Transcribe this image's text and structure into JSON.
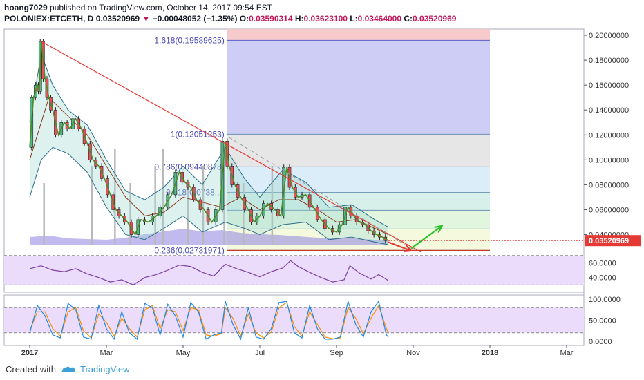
{
  "header": {
    "author": "hoang7029",
    "published_text": "published on TradingView.com, October 14, 2017 09:54 EST",
    "symbol": "POLONIEX:ETCETH, D",
    "last": "0.03520969",
    "change_arrow": "▼",
    "change": "−0.00048052 (−1.35%)",
    "o_label": "O:",
    "o_value": "0.03590314",
    "h_label": "H:",
    "h_value": "0.03623100",
    "l_label": "L:",
    "l_value": "0.03464000",
    "c_label": "C:",
    "c_value": "0.03520969"
  },
  "footer": {
    "created_with": "Created with",
    "brand": "TradingView"
  },
  "colors": {
    "price": "#1a1a1a",
    "up_candle": "#53b987",
    "down_candle": "#eb4d5c",
    "bollinger": "#2a6c8a",
    "ma_green": "#4c8c28",
    "ma_brown": "#8b3a1c",
    "trendline": "#e53935",
    "arrow_green": "#26c226",
    "arrow_red": "#e53935",
    "rsi": "#7b3f9e",
    "stoch_k": "#1e88e5",
    "stoch_d": "#fb8c00",
    "price_label_bg": "#e53935"
  },
  "chart_data": {
    "type": "candlestick",
    "price_axis": {
      "ticks": [
        "0.20000000",
        "0.18000000",
        "0.16000000",
        "0.14000000",
        "0.12000000",
        "0.10000000",
        "0.08000000",
        "0.06000000",
        "0.04000000"
      ],
      "tick_values": [
        0.2,
        0.18,
        0.16,
        0.14,
        0.12,
        0.1,
        0.08,
        0.06,
        0.04
      ],
      "last_price_label": "0.03520969",
      "last_price": 0.0352,
      "ylim": [
        0.022,
        0.205
      ]
    },
    "time_axis": {
      "labels": [
        "2017",
        "Mar",
        "May",
        "Jul",
        "Sep",
        "Nov",
        "2018",
        "Mar"
      ],
      "label_months": [
        0,
        2,
        4,
        6,
        8,
        10,
        12,
        14
      ]
    },
    "price_series": [
      [
        0.0,
        0.11
      ],
      [
        0.1,
        0.15
      ],
      [
        0.2,
        0.16
      ],
      [
        0.25,
        0.155
      ],
      [
        0.3,
        0.195
      ],
      [
        0.4,
        0.165
      ],
      [
        0.5,
        0.15
      ],
      [
        0.6,
        0.14
      ],
      [
        0.75,
        0.12
      ],
      [
        0.9,
        0.13
      ],
      [
        1.05,
        0.125
      ],
      [
        1.2,
        0.133
      ],
      [
        1.35,
        0.125
      ],
      [
        1.5,
        0.113
      ],
      [
        1.65,
        0.1
      ],
      [
        1.8,
        0.095
      ],
      [
        1.95,
        0.085
      ],
      [
        2.1,
        0.072
      ],
      [
        2.25,
        0.06
      ],
      [
        2.4,
        0.055
      ],
      [
        2.55,
        0.05
      ],
      [
        2.75,
        0.04
      ],
      [
        2.9,
        0.052
      ],
      [
        3.1,
        0.05
      ],
      [
        3.3,
        0.055
      ],
      [
        3.5,
        0.062
      ],
      [
        3.7,
        0.072
      ],
      [
        3.9,
        0.09
      ],
      [
        4.05,
        0.082
      ],
      [
        4.2,
        0.078
      ],
      [
        4.35,
        0.068
      ],
      [
        4.55,
        0.06
      ],
      [
        4.75,
        0.05
      ],
      [
        4.95,
        0.06
      ],
      [
        5.1,
        0.115
      ],
      [
        5.2,
        0.095
      ],
      [
        5.35,
        0.08
      ],
      [
        5.5,
        0.07
      ],
      [
        5.7,
        0.06
      ],
      [
        5.85,
        0.05
      ],
      [
        6.0,
        0.055
      ],
      [
        6.2,
        0.065
      ],
      [
        6.4,
        0.06
      ],
      [
        6.55,
        0.055
      ],
      [
        6.7,
        0.094
      ],
      [
        6.85,
        0.078
      ],
      [
        7.0,
        0.07
      ],
      [
        7.2,
        0.072
      ],
      [
        7.4,
        0.062
      ],
      [
        7.6,
        0.052
      ],
      [
        7.8,
        0.045
      ],
      [
        8.0,
        0.042
      ],
      [
        8.15,
        0.048
      ],
      [
        8.3,
        0.062
      ],
      [
        8.45,
        0.055
      ],
      [
        8.6,
        0.05
      ],
      [
        8.75,
        0.048
      ],
      [
        8.9,
        0.043
      ],
      [
        9.05,
        0.04
      ],
      [
        9.2,
        0.038
      ],
      [
        9.35,
        0.0352
      ]
    ],
    "bollinger_upper": [
      [
        0.0,
        0.13
      ],
      [
        0.3,
        0.185
      ],
      [
        0.6,
        0.16
      ],
      [
        1.0,
        0.14
      ],
      [
        1.5,
        0.128
      ],
      [
        2.0,
        0.1
      ],
      [
        2.5,
        0.075
      ],
      [
        3.0,
        0.068
      ],
      [
        3.5,
        0.078
      ],
      [
        4.0,
        0.095
      ],
      [
        4.5,
        0.08
      ],
      [
        5.1,
        0.11
      ],
      [
        5.6,
        0.085
      ],
      [
        6.0,
        0.07
      ],
      [
        6.6,
        0.092
      ],
      [
        7.2,
        0.082
      ],
      [
        7.8,
        0.062
      ],
      [
        8.4,
        0.064
      ],
      [
        9.0,
        0.052
      ],
      [
        9.35,
        0.046
      ]
    ],
    "bollinger_lower": [
      [
        0.0,
        0.07
      ],
      [
        0.3,
        0.1
      ],
      [
        0.6,
        0.11
      ],
      [
        1.0,
        0.105
      ],
      [
        1.5,
        0.09
      ],
      [
        2.0,
        0.062
      ],
      [
        2.5,
        0.04
      ],
      [
        3.0,
        0.036
      ],
      [
        3.5,
        0.045
      ],
      [
        4.0,
        0.055
      ],
      [
        4.5,
        0.042
      ],
      [
        5.1,
        0.05
      ],
      [
        5.6,
        0.045
      ],
      [
        6.0,
        0.04
      ],
      [
        6.6,
        0.048
      ],
      [
        7.2,
        0.05
      ],
      [
        7.8,
        0.036
      ],
      [
        8.4,
        0.038
      ],
      [
        9.0,
        0.034
      ],
      [
        9.35,
        0.032
      ]
    ],
    "ma_slow": [
      [
        0.0,
        0.1
      ],
      [
        0.5,
        0.15
      ],
      [
        1.0,
        0.135
      ],
      [
        1.5,
        0.12
      ],
      [
        2.0,
        0.095
      ],
      [
        2.5,
        0.07
      ],
      [
        3.0,
        0.055
      ],
      [
        3.5,
        0.058
      ],
      [
        4.0,
        0.07
      ],
      [
        4.5,
        0.066
      ],
      [
        5.0,
        0.062
      ],
      [
        5.5,
        0.07
      ],
      [
        6.0,
        0.06
      ],
      [
        6.5,
        0.068
      ],
      [
        7.0,
        0.068
      ],
      [
        7.5,
        0.06
      ],
      [
        8.0,
        0.05
      ],
      [
        8.5,
        0.052
      ],
      [
        9.0,
        0.045
      ],
      [
        9.35,
        0.04
      ]
    ],
    "volume_series": [
      [
        0.0,
        12
      ],
      [
        0.5,
        14
      ],
      [
        1.0,
        10
      ],
      [
        1.5,
        9
      ],
      [
        2.0,
        8
      ],
      [
        2.5,
        11
      ],
      [
        3.0,
        16
      ],
      [
        3.5,
        20
      ],
      [
        4.0,
        24
      ],
      [
        4.5,
        20
      ],
      [
        5.0,
        22
      ],
      [
        5.5,
        18
      ],
      [
        6.0,
        16
      ],
      [
        6.5,
        15
      ],
      [
        7.0,
        13
      ],
      [
        7.5,
        11
      ],
      [
        8.0,
        10
      ],
      [
        8.5,
        10
      ],
      [
        9.0,
        8
      ],
      [
        9.35,
        7
      ]
    ],
    "volume_spikes_month": [
      0.35,
      1.6,
      2.2,
      2.6,
      3.25,
      3.45,
      4.1,
      4.5,
      5.05,
      5.55,
      6.3
    ],
    "fibonacci": {
      "start_month": 5.15,
      "end_month": 12.0,
      "levels": [
        {
          "label": "1.618(0.19589625)",
          "value": 0.19589625,
          "fill": "#c8c8f4"
        },
        {
          "label": "1(0.12051253)",
          "value": 0.12051253,
          "fill": "#e3e3e3"
        },
        {
          "label": "0.786(0.09440878)",
          "value": 0.09440878,
          "fill": "#d6ebf7"
        },
        {
          "label": "0.618(0.0738...)",
          "value": 0.0738,
          "fill": "#d3f0e8"
        },
        {
          "label": "",
          "value": 0.0595,
          "fill": "#dff5dc"
        },
        {
          "label": "",
          "value": 0.0445,
          "fill": "#f4f9dc"
        },
        {
          "label": "0.236(0.02731971)",
          "value": 0.02731971,
          "fill": "#fbf7dc"
        }
      ],
      "top_fill": "#f6caca",
      "top_value": 0.205
    },
    "trendline": [
      [
        0.3,
        0.195
      ],
      [
        10.2,
        0.026
      ]
    ],
    "arrow_down": [
      [
        9.35,
        0.034
      ],
      [
        9.95,
        0.027
      ]
    ],
    "arrow_up": [
      [
        9.95,
        0.029
      ],
      [
        10.75,
        0.047
      ]
    ],
    "rsi": {
      "axis_ticks": [
        "60.0000",
        "40.0000"
      ],
      "tick_values": [
        60,
        40
      ],
      "ylim": [
        20,
        66
      ],
      "band": [
        30,
        70
      ],
      "series": [
        [
          0.0,
          52
        ],
        [
          0.3,
          56
        ],
        [
          0.6,
          50
        ],
        [
          0.9,
          48
        ],
        [
          1.2,
          52
        ],
        [
          1.5,
          45
        ],
        [
          1.8,
          40
        ],
        [
          2.1,
          34
        ],
        [
          2.4,
          37
        ],
        [
          2.7,
          30
        ],
        [
          3.0,
          40
        ],
        [
          3.3,
          44
        ],
        [
          3.6,
          50
        ],
        [
          3.9,
          57
        ],
        [
          4.2,
          55
        ],
        [
          4.5,
          47
        ],
        [
          4.8,
          42
        ],
        [
          5.1,
          58
        ],
        [
          5.4,
          52
        ],
        [
          5.7,
          47
        ],
        [
          6.0,
          41
        ],
        [
          6.3,
          48
        ],
        [
          6.6,
          53
        ],
        [
          6.8,
          63
        ],
        [
          7.0,
          55
        ],
        [
          7.3,
          47
        ],
        [
          7.6,
          40
        ],
        [
          7.9,
          34
        ],
        [
          8.2,
          37
        ],
        [
          8.35,
          56
        ],
        [
          8.6,
          46
        ],
        [
          8.9,
          38
        ],
        [
          9.1,
          44
        ],
        [
          9.35,
          36
        ]
      ]
    },
    "stochastic": {
      "axis_ticks": [
        "100.0000",
        "50.0000",
        "0.0000"
      ],
      "tick_values": [
        100,
        50,
        0
      ],
      "ylim": [
        -10,
        110
      ],
      "band": [
        20,
        80
      ],
      "k_series": [
        [
          0.0,
          20
        ],
        [
          0.2,
          85
        ],
        [
          0.4,
          60
        ],
        [
          0.6,
          15
        ],
        [
          0.8,
          8
        ],
        [
          1.0,
          90
        ],
        [
          1.2,
          75
        ],
        [
          1.4,
          10
        ],
        [
          1.6,
          5
        ],
        [
          1.8,
          85
        ],
        [
          2.0,
          30
        ],
        [
          2.2,
          5
        ],
        [
          2.4,
          70
        ],
        [
          2.6,
          20
        ],
        [
          2.8,
          5
        ],
        [
          3.0,
          90
        ],
        [
          3.2,
          80
        ],
        [
          3.4,
          15
        ],
        [
          3.6,
          88
        ],
        [
          3.8,
          60
        ],
        [
          4.0,
          10
        ],
        [
          4.2,
          92
        ],
        [
          4.4,
          70
        ],
        [
          4.6,
          5
        ],
        [
          4.8,
          15
        ],
        [
          5.0,
          20
        ],
        [
          5.1,
          95
        ],
        [
          5.3,
          40
        ],
        [
          5.5,
          5
        ],
        [
          5.7,
          80
        ],
        [
          5.9,
          10
        ],
        [
          6.1,
          5
        ],
        [
          6.3,
          30
        ],
        [
          6.5,
          92
        ],
        [
          6.7,
          95
        ],
        [
          6.9,
          20
        ],
        [
          7.1,
          8
        ],
        [
          7.3,
          85
        ],
        [
          7.5,
          30
        ],
        [
          7.7,
          5
        ],
        [
          7.9,
          5
        ],
        [
          8.1,
          10
        ],
        [
          8.3,
          95
        ],
        [
          8.5,
          40
        ],
        [
          8.7,
          10
        ],
        [
          8.9,
          70
        ],
        [
          9.1,
          95
        ],
        [
          9.3,
          15
        ],
        [
          9.35,
          10
        ]
      ],
      "d_series": [
        [
          0.0,
          25
        ],
        [
          0.2,
          70
        ],
        [
          0.4,
          70
        ],
        [
          0.6,
          30
        ],
        [
          0.8,
          12
        ],
        [
          1.0,
          70
        ],
        [
          1.2,
          80
        ],
        [
          1.4,
          25
        ],
        [
          1.6,
          8
        ],
        [
          1.8,
          65
        ],
        [
          2.0,
          45
        ],
        [
          2.2,
          12
        ],
        [
          2.4,
          55
        ],
        [
          2.6,
          30
        ],
        [
          2.8,
          10
        ],
        [
          3.0,
          75
        ],
        [
          3.2,
          85
        ],
        [
          3.4,
          30
        ],
        [
          3.6,
          75
        ],
        [
          3.8,
          70
        ],
        [
          4.0,
          25
        ],
        [
          4.2,
          80
        ],
        [
          4.4,
          75
        ],
        [
          4.6,
          15
        ],
        [
          4.8,
          12
        ],
        [
          5.0,
          18
        ],
        [
          5.1,
          80
        ],
        [
          5.3,
          55
        ],
        [
          5.5,
          12
        ],
        [
          5.7,
          65
        ],
        [
          5.9,
          20
        ],
        [
          6.1,
          8
        ],
        [
          6.3,
          22
        ],
        [
          6.5,
          80
        ],
        [
          6.7,
          92
        ],
        [
          6.9,
          35
        ],
        [
          7.1,
          12
        ],
        [
          7.3,
          70
        ],
        [
          7.5,
          40
        ],
        [
          7.7,
          10
        ],
        [
          7.9,
          6
        ],
        [
          8.1,
          8
        ],
        [
          8.3,
          80
        ],
        [
          8.5,
          55
        ],
        [
          8.7,
          18
        ],
        [
          8.9,
          55
        ],
        [
          9.1,
          85
        ],
        [
          9.3,
          30
        ],
        [
          9.35,
          20
        ]
      ]
    }
  }
}
